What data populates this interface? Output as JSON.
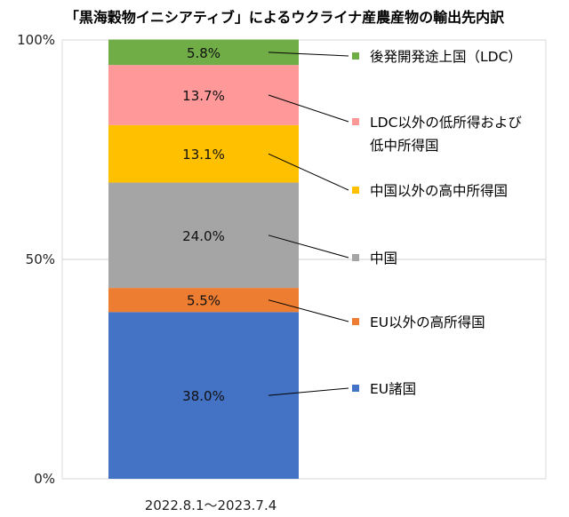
{
  "chart_data": {
    "type": "bar",
    "stacked": true,
    "percent": true,
    "title": "「黒海穀物イニシアティブ」によるウクライナ産農産物の輸出先内訳",
    "categories": [
      "2022.8.1〜2023.7.4"
    ],
    "ylim": [
      0,
      100
    ],
    "yticks": [
      "0%",
      "50%",
      "100%"
    ],
    "grid": true,
    "legend_placement": "right",
    "series": [
      {
        "name": "EU諸国",
        "value": 38.0,
        "label": "38.0%",
        "color": "#4472C4"
      },
      {
        "name": "EU以外の高所得国",
        "value": 5.5,
        "label": "5.5%",
        "color": "#ED7D31"
      },
      {
        "name": "中国",
        "value": 24.0,
        "label": "24.0%",
        "color": "#A5A5A5"
      },
      {
        "name": "中国以外の高中所得国",
        "value": 13.1,
        "label": "13.1%",
        "color": "#FFC000"
      },
      {
        "name": "LDC以外の低所得およびの低中所得国",
        "lines": [
          "LDC以外の低所得および",
          "低中所得国"
        ],
        "value": 13.7,
        "label": "13.7%",
        "color": "#FF9999"
      },
      {
        "name": "後発開発途上国（LDC）",
        "value": 5.8,
        "label": "5.8%",
        "color": "#70AD47"
      }
    ]
  }
}
